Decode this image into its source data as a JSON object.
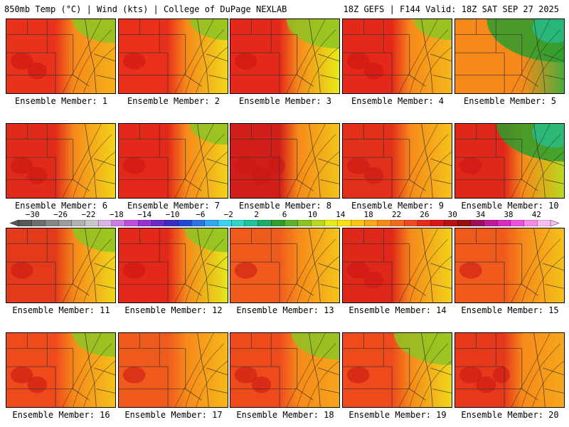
{
  "header": {
    "left_title": "850mb Temp (°C) | Wind (kts) | College of DuPage NEXLAB",
    "right_title": "18Z GEFS | F144 Valid: 18Z SAT SEP 27 2025"
  },
  "colorbar": {
    "tick_labels": [
      "-30",
      "-26",
      "-22",
      "-18",
      "-14",
      "-10",
      "-6",
      "-2",
      "2",
      "6",
      "10",
      "14",
      "18",
      "22",
      "26",
      "30",
      "34",
      "38",
      "42"
    ],
    "range": [
      -32,
      44
    ],
    "colors": [
      "#585858",
      "#6e6e6e",
      "#858585",
      "#9b9b9b",
      "#b0b0b0",
      "#c7c7c7",
      "#d9b4e6",
      "#d07ae6",
      "#c04fe0",
      "#9a2fd3",
      "#6a2ac8",
      "#3b2bc0",
      "#2246d6",
      "#2a74e6",
      "#32a6f0",
      "#3cd1f0",
      "#2fd5c0",
      "#22c29a",
      "#1bab6a",
      "#2d9e2d",
      "#5cb02b",
      "#8cc423",
      "#bcd81c",
      "#e6ec16",
      "#fbe012",
      "#fbc412",
      "#f9a817",
      "#f6891a",
      "#f26a1c",
      "#ee4a1c",
      "#e82a1c",
      "#d81818",
      "#b81212",
      "#961010",
      "#a0105a",
      "#c01a9a",
      "#d82ac0",
      "#ee52dc",
      "#f68ae6",
      "#fbbdf0"
    ]
  },
  "members": [
    {
      "caption": "Ensemble Member: 1",
      "west": "#e8321b",
      "east": "#f4b11a",
      "hot_spots": 2,
      "green_corner": 0.3
    },
    {
      "caption": "Ensemble Member: 2",
      "west": "#ea301a",
      "east": "#f0d81a",
      "hot_spots": 1,
      "green_corner": 0.2
    },
    {
      "caption": "Ensemble Member: 3",
      "west": "#e4281a",
      "east": "#e6ec16",
      "hot_spots": 1,
      "green_corner": 0.5
    },
    {
      "caption": "Ensemble Member: 4",
      "west": "#e4281a",
      "east": "#f4b81a",
      "hot_spots": 2,
      "green_corner": 0.2
    },
    {
      "caption": "Ensemble Member: 5",
      "west": "#f6891a",
      "east": "#4cae3a",
      "hot_spots": 0,
      "green_corner": 1.0
    },
    {
      "caption": "Ensemble Member: 6",
      "west": "#e02a1a",
      "east": "#f2d419",
      "hot_spots": 2,
      "green_corner": 0
    },
    {
      "caption": "Ensemble Member: 7",
      "west": "#e4281a",
      "east": "#f2d21a",
      "hot_spots": 1,
      "green_corner": 0.2
    },
    {
      "caption": "Ensemble Member: 8",
      "west": "#d21e18",
      "east": "#f2c41a",
      "hot_spots": 3,
      "green_corner": 0
    },
    {
      "caption": "Ensemble Member: 9",
      "west": "#e2301a",
      "east": "#f6c21a",
      "hot_spots": 2,
      "green_corner": 0
    },
    {
      "caption": "Ensemble Member: 10",
      "west": "#e0281a",
      "east": "#bcd81c",
      "hot_spots": 1,
      "green_corner": 0.8
    },
    {
      "caption": "Ensemble Member: 11",
      "west": "#e23a1a",
      "east": "#f0d61a",
      "hot_spots": 1,
      "green_corner": 0.3
    },
    {
      "caption": "Ensemble Member: 12",
      "west": "#e4281a",
      "east": "#e2e81a",
      "hot_spots": 1,
      "green_corner": 0.3
    },
    {
      "caption": "Ensemble Member: 13",
      "west": "#f05a1c",
      "east": "#f5c41a",
      "hot_spots": 1,
      "green_corner": 0
    },
    {
      "caption": "Ensemble Member: 14",
      "west": "#e0281a",
      "east": "#f2d21a",
      "hot_spots": 2,
      "green_corner": 0
    },
    {
      "caption": "Ensemble Member: 15",
      "west": "#f05a1c",
      "east": "#f5c21a",
      "hot_spots": 1,
      "green_corner": 0
    },
    {
      "caption": "Ensemble Member: 16",
      "west": "#ee4a1c",
      "east": "#f4c01a",
      "hot_spots": 2,
      "green_corner": 0.3
    },
    {
      "caption": "Ensemble Member: 17",
      "west": "#f05a1c",
      "east": "#f6b81a",
      "hot_spots": 1,
      "green_corner": 0
    },
    {
      "caption": "Ensemble Member: 18",
      "west": "#ee4a1c",
      "east": "#f7a51a",
      "hot_spots": 2,
      "green_corner": 0.4
    },
    {
      "caption": "Ensemble Member: 19",
      "west": "#ee4a1c",
      "east": "#f0d81a",
      "hot_spots": 1,
      "green_corner": 0.6
    },
    {
      "caption": "Ensemble Member: 20",
      "west": "#e8381c",
      "east": "#f6a81a",
      "hot_spots": 3,
      "green_corner": 0
    }
  ]
}
